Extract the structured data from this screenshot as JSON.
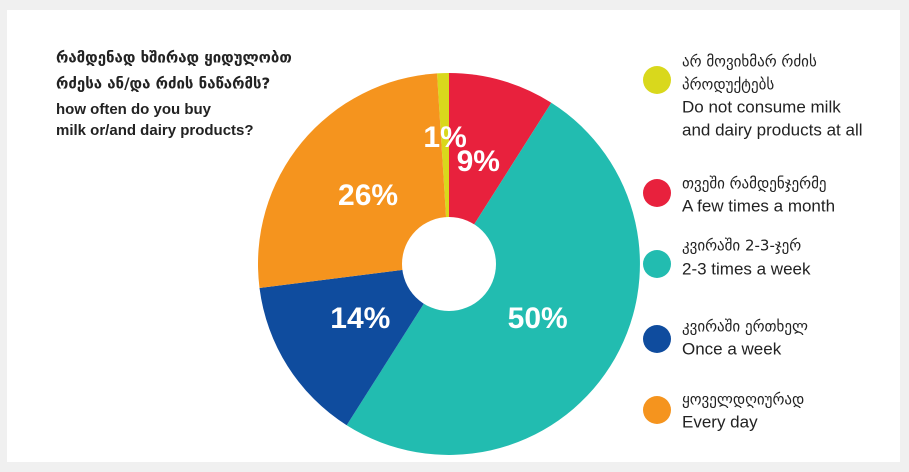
{
  "chart_data": {
    "type": "donut",
    "title": [
      "რამდენად ხშირად ყიდულობთ",
      "რძესა ან/და რძის ნაწარმს?"
    ],
    "subtitle": [
      "how often do you buy",
      "milk or/and dairy products?"
    ],
    "categories": [
      [
        "არ მოვიხმარ რძის",
        "პროდუქტებს",
        "Do not consume milk",
        "and dairy products at all"
      ],
      [
        "თვეში რამდენჯერმე",
        "A few times a month"
      ],
      [
        "კვირაში 2-3-ჯერ",
        "2-3 times a week"
      ],
      [
        "კვირაში ერთხელ",
        "Once a week"
      ],
      [
        "ყოველდღიურად",
        "Every day"
      ]
    ],
    "values": [
      1,
      9,
      50,
      14,
      26
    ],
    "value_labels": [
      "1%",
      "9%",
      "50%",
      "14%",
      "26%"
    ],
    "colors": [
      "#d9d81c",
      "#e8213d",
      "#22bcb0",
      "#0f4c9e",
      "#f5941e"
    ],
    "legend": "right"
  }
}
